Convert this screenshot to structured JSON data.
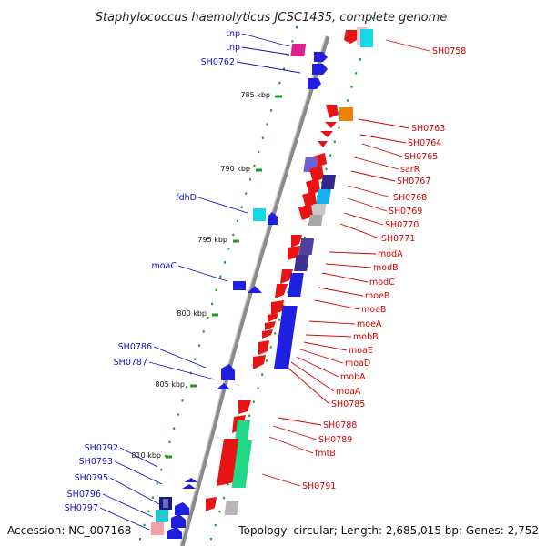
{
  "title": "Staphylococcus haemolyticus JCSC1435, complete genome",
  "footer": {
    "accession": "Accession: NC_007168",
    "summary": "Topology: circular; Length: 2,685,015 bp; Genes: 2,752"
  },
  "colors": {
    "forward_strand": "#1f1fe0",
    "reverse_strand": "#e81414",
    "backbone": "#8a8a8a",
    "tick": "#1e9a1e",
    "label_forward": "#1010c8",
    "label_reverse": "#d40000"
  },
  "kbp_markers": [
    "785 kbp",
    "790 kbp",
    "795 kbp",
    "800 kbp",
    "805 kbp",
    "810 kbp"
  ],
  "forward_labels": [
    "tnp",
    "tnp",
    "SH0762",
    "fdhD",
    "moaC",
    "SH0786",
    "SH0787",
    "SH0792",
    "SH0793",
    "SH0795",
    "SH0796",
    "SH0797"
  ],
  "reverse_labels": [
    "SH0758",
    "SH0763",
    "SH0764",
    "SH0765",
    "sarR",
    "SH0767",
    "SH0768",
    "SH0769",
    "SH0770",
    "SH0771",
    "modA",
    "modB",
    "modC",
    "moeB",
    "moaB",
    "moeA",
    "mobB",
    "moaE",
    "moaD",
    "mobA",
    "moaA",
    "SH0785",
    "SH0788",
    "SH0789",
    "fmtB",
    "SH0791"
  ]
}
